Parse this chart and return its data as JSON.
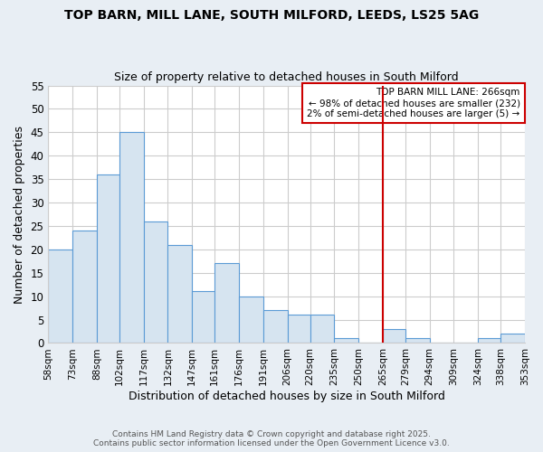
{
  "title1": "TOP BARN, MILL LANE, SOUTH MILFORD, LEEDS, LS25 5AG",
  "title2": "Size of property relative to detached houses in South Milford",
  "xlabel": "Distribution of detached houses by size in South Milford",
  "ylabel": "Number of detached properties",
  "bin_labels": [
    "58sqm",
    "73sqm",
    "88sqm",
    "102sqm",
    "117sqm",
    "132sqm",
    "147sqm",
    "161sqm",
    "176sqm",
    "191sqm",
    "206sqm",
    "220sqm",
    "235sqm",
    "250sqm",
    "265sqm",
    "279sqm",
    "294sqm",
    "309sqm",
    "324sqm",
    "338sqm",
    "353sqm"
  ],
  "bar_values": [
    20,
    24,
    36,
    45,
    26,
    21,
    11,
    17,
    10,
    7,
    6,
    6,
    1,
    0,
    3,
    1,
    0,
    0,
    1,
    2
  ],
  "bar_color": "#d6e4f0",
  "bar_edge_color": "#5b9bd5",
  "vline_x_index": 14,
  "vline_color": "#cc0000",
  "bin_edges_values": [
    58,
    73,
    88,
    102,
    117,
    132,
    147,
    161,
    176,
    191,
    206,
    220,
    235,
    250,
    265,
    279,
    294,
    309,
    324,
    338,
    353
  ],
  "annotation_title": "TOP BARN MILL LANE: 266sqm",
  "annotation_line1": "← 98% of detached houses are smaller (232)",
  "annotation_line2": "2% of semi-detached houses are larger (5) →",
  "annotation_box_color": "#cc0000",
  "ylim": [
    0,
    55
  ],
  "yticks": [
    0,
    5,
    10,
    15,
    20,
    25,
    30,
    35,
    40,
    45,
    50,
    55
  ],
  "footer1": "Contains HM Land Registry data © Crown copyright and database right 2025.",
  "footer2": "Contains public sector information licensed under the Open Government Licence v3.0.",
  "bg_color": "#e8eef4",
  "plot_bg_color": "#ffffff",
  "grid_color": "#cccccc"
}
